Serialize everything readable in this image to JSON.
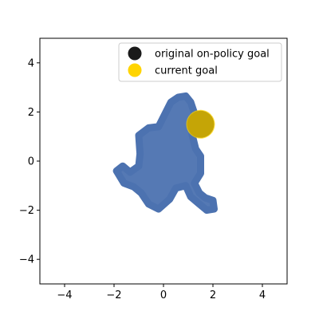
{
  "chart_data": {
    "type": "scatter",
    "title": "",
    "xlabel": "",
    "ylabel": "",
    "xlim": [
      -5,
      5
    ],
    "ylim": [
      -5,
      5
    ],
    "xticks": [
      -4,
      -2,
      0,
      2,
      4
    ],
    "yticks": [
      -4,
      -2,
      0,
      2,
      4
    ],
    "xtick_labels": [
      "−4",
      "−2",
      "0",
      "2",
      "4"
    ],
    "ytick_labels": [
      "−4",
      "−2",
      "0",
      "2",
      "4"
    ],
    "grid": false,
    "legend_position": "top-right",
    "legend": [
      {
        "label": "original on-policy goal",
        "color": "#1a1a1a"
      },
      {
        "label": "current goal",
        "color": "#ffd400"
      }
    ],
    "trajectory_color": "#4c72b0",
    "trajectory_region": [
      [
        -0.2,
        1.4
      ],
      [
        0.1,
        2.0
      ],
      [
        0.3,
        2.4
      ],
      [
        0.6,
        2.6
      ],
      [
        0.9,
        2.65
      ],
      [
        1.1,
        2.4
      ],
      [
        1.3,
        1.8
      ],
      [
        1.15,
        1.1
      ],
      [
        1.3,
        0.5
      ],
      [
        1.5,
        0.2
      ],
      [
        1.5,
        -0.5
      ],
      [
        1.25,
        -0.9
      ],
      [
        1.45,
        -1.3
      ],
      [
        1.7,
        -1.5
      ],
      [
        2.0,
        -1.6
      ],
      [
        2.05,
        -1.95
      ],
      [
        1.75,
        -2.0
      ],
      [
        1.45,
        -1.75
      ],
      [
        1.1,
        -1.45
      ],
      [
        0.9,
        -1.0
      ],
      [
        0.5,
        -1.1
      ],
      [
        0.25,
        -1.55
      ],
      [
        -0.2,
        -1.95
      ],
      [
        -0.6,
        -1.75
      ],
      [
        -0.9,
        -1.3
      ],
      [
        -1.2,
        -1.05
      ],
      [
        -1.6,
        -0.9
      ],
      [
        -1.9,
        -0.4
      ],
      [
        -1.65,
        -0.2
      ],
      [
        -1.35,
        -0.45
      ],
      [
        -1.0,
        -0.2
      ],
      [
        -0.95,
        0.3
      ],
      [
        -1.0,
        1.05
      ],
      [
        -0.6,
        1.35
      ]
    ],
    "original_goal": {
      "x": 1.5,
      "y": 1.5
    },
    "current_goal": {
      "x": 1.5,
      "y": 1.5
    }
  }
}
